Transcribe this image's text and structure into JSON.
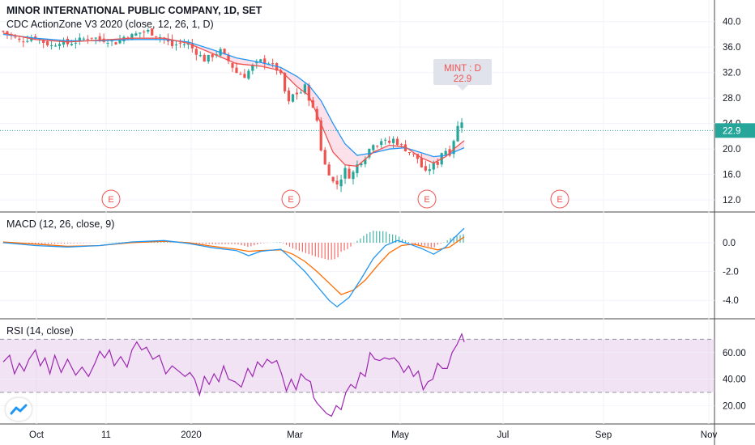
{
  "header": {
    "title": "MINOR INTERNATIONAL PUBLIC COMPANY, 1D, SET",
    "indicator": "CDC ActionZone V3 2020 (close, 12, 26, 1, D)"
  },
  "callout": {
    "line1": "MINT : D",
    "line2": "22.9"
  },
  "last_price_label": "22.9",
  "earnings_marker": "E",
  "colors": {
    "up": "#26a69a",
    "down": "#ef5350",
    "ema_fast": "#ef5350",
    "ema_slow": "#2196f3",
    "macd": "#2196f3",
    "signal": "#ff6d00",
    "rsi": "#9c27b0",
    "rsi_band": "#e1bee7"
  },
  "chart_data": [
    {
      "type": "candlestick",
      "title": "MINOR INTERNATIONAL PUBLIC COMPANY, 1D, SET",
      "ylim": [
        11,
        42
      ],
      "yticks": [
        "40.0",
        "36.0",
        "32.0",
        "28.0",
        "24.0",
        "20.0",
        "16.0",
        "12.0"
      ],
      "last_price": 22.9,
      "x_tick_labels": [
        "Oct",
        "11",
        "2020",
        "Mar",
        "May",
        "Jul",
        "Sep",
        "Nov"
      ],
      "close_path": [
        [
          0,
          38.5
        ],
        [
          10,
          37.8
        ],
        [
          20,
          37
        ],
        [
          30,
          37.3
        ],
        [
          40,
          37.6
        ],
        [
          50,
          36.8
        ],
        [
          60,
          36.2
        ],
        [
          70,
          36.9
        ],
        [
          80,
          36.5
        ],
        [
          90,
          36.9
        ],
        [
          100,
          37.3
        ],
        [
          110,
          37.6
        ],
        [
          120,
          37.2
        ],
        [
          130,
          37.1
        ],
        [
          140,
          36.7
        ],
        [
          150,
          37.6
        ],
        [
          160,
          37.8
        ],
        [
          170,
          38.3
        ],
        [
          180,
          38.5
        ],
        [
          190,
          37.9
        ],
        [
          200,
          37.3
        ],
        [
          210,
          36.2
        ],
        [
          220,
          36.6
        ],
        [
          230,
          36.4
        ],
        [
          240,
          35.2
        ],
        [
          250,
          34.0
        ],
        [
          260,
          34.7
        ],
        [
          270,
          35.4
        ],
        [
          280,
          33.8
        ],
        [
          290,
          32.0
        ],
        [
          300,
          31.5
        ],
        [
          310,
          33.0
        ],
        [
          320,
          33.8
        ],
        [
          330,
          33.6
        ],
        [
          340,
          32.5
        ],
        [
          345,
          31.5
        ],
        [
          350,
          29.0
        ],
        [
          355,
          27.2
        ],
        [
          360,
          28.5
        ],
        [
          370,
          28.9
        ],
        [
          375,
          29.8
        ],
        [
          380,
          28.0
        ],
        [
          385,
          26.2
        ],
        [
          390,
          24.5
        ],
        [
          395,
          20.0
        ],
        [
          400,
          17.5
        ],
        [
          405,
          16.3
        ],
        [
          410,
          14.8
        ],
        [
          415,
          14.5
        ],
        [
          420,
          15.5
        ],
        [
          425,
          16.7
        ],
        [
          430,
          15.8
        ],
        [
          435,
          16.3
        ],
        [
          440,
          17.5
        ],
        [
          445,
          18.2
        ],
        [
          450,
          18.8
        ],
        [
          455,
          20.0
        ],
        [
          460,
          21.0
        ],
        [
          465,
          20.8
        ],
        [
          470,
          21.4
        ],
        [
          475,
          21.1
        ],
        [
          480,
          21.0
        ],
        [
          485,
          21.5
        ],
        [
          490,
          21.0
        ],
        [
          495,
          20.5
        ],
        [
          500,
          20.0
        ],
        [
          505,
          19.5
        ],
        [
          510,
          19.0
        ],
        [
          515,
          18.5
        ],
        [
          520,
          17.2
        ],
        [
          525,
          16.2
        ],
        [
          530,
          17.0
        ],
        [
          535,
          17.5
        ],
        [
          540,
          17.8
        ],
        [
          545,
          19.5
        ],
        [
          550,
          19.8
        ],
        [
          555,
          19.4
        ],
        [
          560,
          21.5
        ],
        [
          565,
          23.5
        ],
        [
          570,
          24.5
        ],
        [
          573,
          23.0
        ]
      ],
      "ema_fast": [
        [
          0,
          38.2
        ],
        [
          40,
          37.2
        ],
        [
          80,
          36.8
        ],
        [
          120,
          37.1
        ],
        [
          160,
          37.4
        ],
        [
          200,
          37.4
        ],
        [
          230,
          36.6
        ],
        [
          260,
          35.0
        ],
        [
          290,
          33.4
        ],
        [
          320,
          33.0
        ],
        [
          345,
          32.3
        ],
        [
          365,
          29.8
        ],
        [
          380,
          28.4
        ],
        [
          395,
          24.0
        ],
        [
          410,
          19.5
        ],
        [
          425,
          17.5
        ],
        [
          440,
          17.3
        ],
        [
          460,
          19.5
        ],
        [
          480,
          20.6
        ],
        [
          500,
          20.3
        ],
        [
          520,
          18.6
        ],
        [
          535,
          17.8
        ],
        [
          550,
          18.8
        ],
        [
          562,
          20.2
        ],
        [
          573,
          21.3
        ]
      ],
      "ema_slow": [
        [
          0,
          38.0
        ],
        [
          40,
          37.4
        ],
        [
          80,
          37.0
        ],
        [
          120,
          37.0
        ],
        [
          160,
          37.2
        ],
        [
          200,
          37.2
        ],
        [
          230,
          36.8
        ],
        [
          260,
          35.6
        ],
        [
          290,
          34.3
        ],
        [
          320,
          33.6
        ],
        [
          345,
          32.8
        ],
        [
          365,
          31.4
        ],
        [
          380,
          30.0
        ],
        [
          395,
          27.6
        ],
        [
          410,
          24.0
        ],
        [
          425,
          20.8
        ],
        [
          440,
          19.0
        ],
        [
          460,
          19.4
        ],
        [
          480,
          20.0
        ],
        [
          500,
          20.2
        ],
        [
          520,
          19.4
        ],
        [
          535,
          18.8
        ],
        [
          550,
          19.0
        ],
        [
          562,
          19.6
        ],
        [
          573,
          20.2
        ]
      ]
    },
    {
      "type": "line",
      "title": "MACD (12, 26, close, 9)",
      "ylim": [
        -5,
        1.4
      ],
      "yticks": [
        "0.0",
        "-2.0",
        "-4.0"
      ],
      "series": [
        {
          "values": [
            [
              0,
              0.0
            ],
            [
              40,
              -0.2
            ],
            [
              80,
              -0.3
            ],
            [
              120,
              -0.2
            ],
            [
              160,
              0.05
            ],
            [
              200,
              0.15
            ],
            [
              230,
              -0.05
            ],
            [
              260,
              -0.35
            ],
            [
              290,
              -0.55
            ],
            [
              305,
              -0.9
            ],
            [
              320,
              -0.6
            ],
            [
              345,
              -0.45
            ],
            [
              360,
              -1.2
            ],
            [
              375,
              -2.0
            ],
            [
              390,
              -3.0
            ],
            [
              405,
              -4.0
            ],
            [
              415,
              -4.45
            ],
            [
              430,
              -3.8
            ],
            [
              445,
              -2.5
            ],
            [
              460,
              -1.1
            ],
            [
              475,
              -0.2
            ],
            [
              490,
              0.15
            ],
            [
              505,
              -0.1
            ],
            [
              520,
              -0.4
            ],
            [
              535,
              -0.8
            ],
            [
              550,
              -0.3
            ],
            [
              560,
              0.3
            ],
            [
              573,
              1.0
            ]
          ]
        },
        {
          "values": [
            [
              0,
              0.05
            ],
            [
              40,
              -0.1
            ],
            [
              80,
              -0.25
            ],
            [
              120,
              -0.2
            ],
            [
              160,
              0.0
            ],
            [
              200,
              0.1
            ],
            [
              230,
              0.0
            ],
            [
              260,
              -0.25
            ],
            [
              290,
              -0.45
            ],
            [
              305,
              -0.6
            ],
            [
              320,
              -0.55
            ],
            [
              345,
              -0.5
            ],
            [
              360,
              -0.8
            ],
            [
              375,
              -1.3
            ],
            [
              390,
              -2.0
            ],
            [
              405,
              -2.8
            ],
            [
              420,
              -3.6
            ],
            [
              435,
              -3.3
            ],
            [
              450,
              -2.6
            ],
            [
              465,
              -1.6
            ],
            [
              480,
              -0.7
            ],
            [
              495,
              -0.2
            ],
            [
              510,
              -0.1
            ],
            [
              525,
              -0.3
            ],
            [
              540,
              -0.5
            ],
            [
              555,
              -0.3
            ],
            [
              565,
              0.1
            ],
            [
              573,
              0.4
            ]
          ]
        }
      ]
    },
    {
      "type": "line",
      "title": "RSI (14, close)",
      "ylim": [
        8,
        80
      ],
      "band": [
        30,
        70
      ],
      "yticks": [
        "60.00",
        "40.00",
        "20.00"
      ],
      "series": [
        {
          "values": [
            [
              0,
              53
            ],
            [
              8,
              58
            ],
            [
              14,
              44
            ],
            [
              20,
              52
            ],
            [
              26,
              46
            ],
            [
              32,
              55
            ],
            [
              40,
              62
            ],
            [
              46,
              50
            ],
            [
              52,
              56
            ],
            [
              58,
              44
            ],
            [
              64,
              58
            ],
            [
              72,
              45
            ],
            [
              80,
              55
            ],
            [
              90,
              43
            ],
            [
              98,
              49
            ],
            [
              106,
              42
            ],
            [
              114,
              52
            ],
            [
              120,
              61
            ],
            [
              126,
              56
            ],
            [
              132,
              62
            ],
            [
              138,
              50
            ],
            [
              146,
              57
            ],
            [
              154,
              49
            ],
            [
              160,
              62
            ],
            [
              166,
              68
            ],
            [
              172,
              62
            ],
            [
              178,
              64
            ],
            [
              186,
              55
            ],
            [
              194,
              58
            ],
            [
              202,
              44
            ],
            [
              210,
              50
            ],
            [
              218,
              46
            ],
            [
              226,
              42
            ],
            [
              232,
              45
            ],
            [
              238,
              40
            ],
            [
              244,
              28
            ],
            [
              250,
              42
            ],
            [
              256,
              36
            ],
            [
              262,
              44
            ],
            [
              268,
              38
            ],
            [
              274,
              50
            ],
            [
              280,
              40
            ],
            [
              288,
              38
            ],
            [
              296,
              34
            ],
            [
              304,
              48
            ],
            [
              310,
              42
            ],
            [
              316,
              53
            ],
            [
              322,
              49
            ],
            [
              328,
              55
            ],
            [
              334,
              52
            ],
            [
              340,
              54
            ],
            [
              346,
              44
            ],
            [
              352,
              31
            ],
            [
              358,
              40
            ],
            [
              364,
              32
            ],
            [
              370,
              44
            ],
            [
              376,
              40
            ],
            [
              382,
              38
            ],
            [
              386,
              26
            ],
            [
              390,
              22
            ],
            [
              396,
              18
            ],
            [
              402,
              14
            ],
            [
              408,
              12
            ],
            [
              414,
              20
            ],
            [
              420,
              17
            ],
            [
              426,
              30
            ],
            [
              432,
              36
            ],
            [
              438,
              33
            ],
            [
              444,
              45
            ],
            [
              450,
              42
            ],
            [
              456,
              60
            ],
            [
              462,
              55
            ],
            [
              468,
              54
            ],
            [
              474,
              56
            ],
            [
              480,
              55
            ],
            [
              486,
              56
            ],
            [
              492,
              52
            ],
            [
              498,
              45
            ],
            [
              504,
              50
            ],
            [
              510,
              42
            ],
            [
              516,
              46
            ],
            [
              522,
              32
            ],
            [
              528,
              38
            ],
            [
              534,
              40
            ],
            [
              540,
              52
            ],
            [
              546,
              48
            ],
            [
              552,
              48
            ],
            [
              558,
              60
            ],
            [
              564,
              66
            ],
            [
              570,
              74
            ],
            [
              573,
              68
            ]
          ]
        }
      ]
    }
  ]
}
